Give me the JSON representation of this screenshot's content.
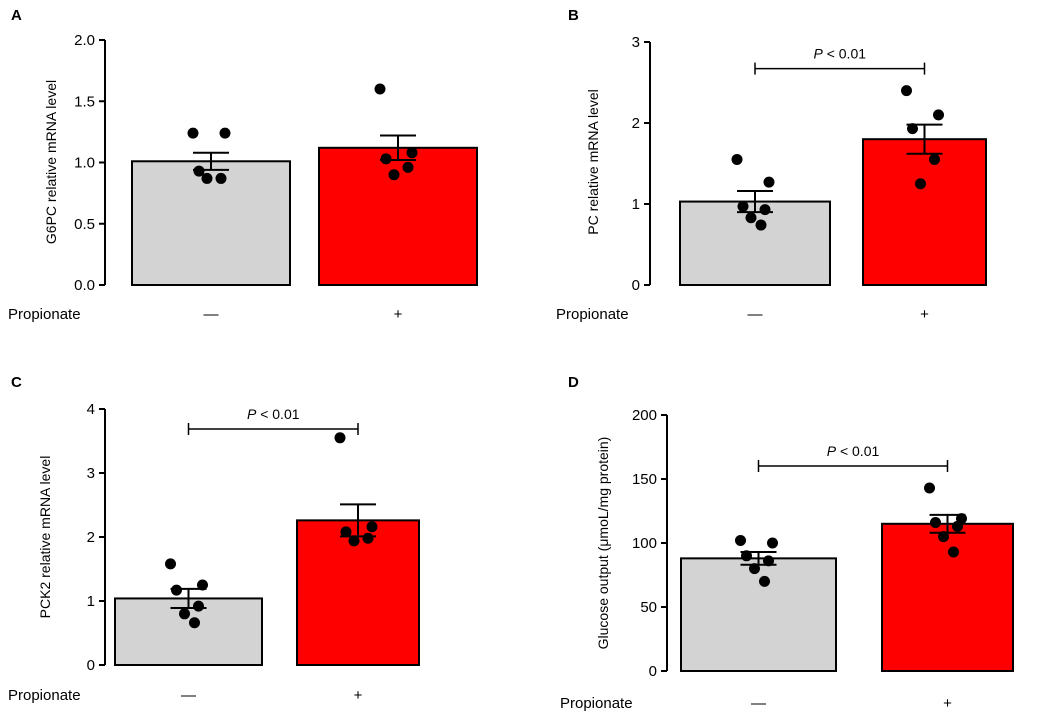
{
  "figure": {
    "colors": {
      "control": "#d3d3d3",
      "treated": "#ff0000",
      "axis": "#000000",
      "dot": "#000000"
    }
  },
  "chart_data": [
    {
      "panel": "A",
      "type": "bar",
      "ylabel": "G6PC relative mRNA level",
      "ylim": [
        0,
        2.0
      ],
      "ticks": [
        "0.0",
        "0.5",
        "1.0",
        "1.5",
        "2.0"
      ],
      "categories": [
        "—",
        "+"
      ],
      "xaxis_label": "Propionate",
      "values": [
        1.01,
        1.12
      ],
      "sem": [
        0.07,
        0.1
      ],
      "points": [
        [
          1.24,
          1.24,
          0.93,
          0.87,
          0.87
        ],
        [
          1.6,
          1.08,
          1.03,
          0.96,
          0.9
        ]
      ],
      "annotation": null
    },
    {
      "panel": "B",
      "type": "bar",
      "ylabel": "PC relative mRNA level",
      "ylim": [
        0,
        3
      ],
      "ticks": [
        "0",
        "1",
        "2",
        "3"
      ],
      "categories": [
        "—",
        "+"
      ],
      "xaxis_label": "Propionate",
      "values": [
        1.03,
        1.8
      ],
      "sem": [
        0.13,
        0.18
      ],
      "points": [
        [
          1.55,
          1.27,
          0.97,
          0.93,
          0.83,
          0.74
        ],
        [
          2.4,
          2.1,
          1.93,
          1.55,
          1.25
        ]
      ],
      "annotation": {
        "p": "P",
        "rest": " < 0.01"
      }
    },
    {
      "panel": "C",
      "type": "bar",
      "ylabel": "PCK2 relative mRNA level",
      "ylim": [
        0,
        4
      ],
      "ticks": [
        "0",
        "1",
        "2",
        "3",
        "4"
      ],
      "categories": [
        "—",
        "+"
      ],
      "xaxis_label": "Propionate",
      "values": [
        1.04,
        2.26
      ],
      "sem": [
        0.15,
        0.25
      ],
      "points": [
        [
          1.58,
          1.25,
          1.17,
          0.92,
          0.8,
          0.66
        ],
        [
          3.55,
          2.16,
          2.08,
          1.98,
          1.94
        ]
      ],
      "annotation": {
        "p": "P",
        "rest": " < 0.01"
      }
    },
    {
      "panel": "D",
      "type": "bar",
      "ylabel": "Glucose output (μmoL/mg protein)",
      "ylim": [
        0,
        200
      ],
      "ticks": [
        "0",
        "50",
        "100",
        "150",
        "200"
      ],
      "categories": [
        "—",
        "+"
      ],
      "xaxis_label": "Propionate",
      "values": [
        88,
        115
      ],
      "sem": [
        5,
        7
      ],
      "points": [
        [
          102,
          100,
          90,
          86,
          80,
          70
        ],
        [
          143,
          119,
          116,
          113,
          105,
          93
        ]
      ],
      "annotation": {
        "p": "P",
        "rest": " < 0.01"
      }
    }
  ]
}
